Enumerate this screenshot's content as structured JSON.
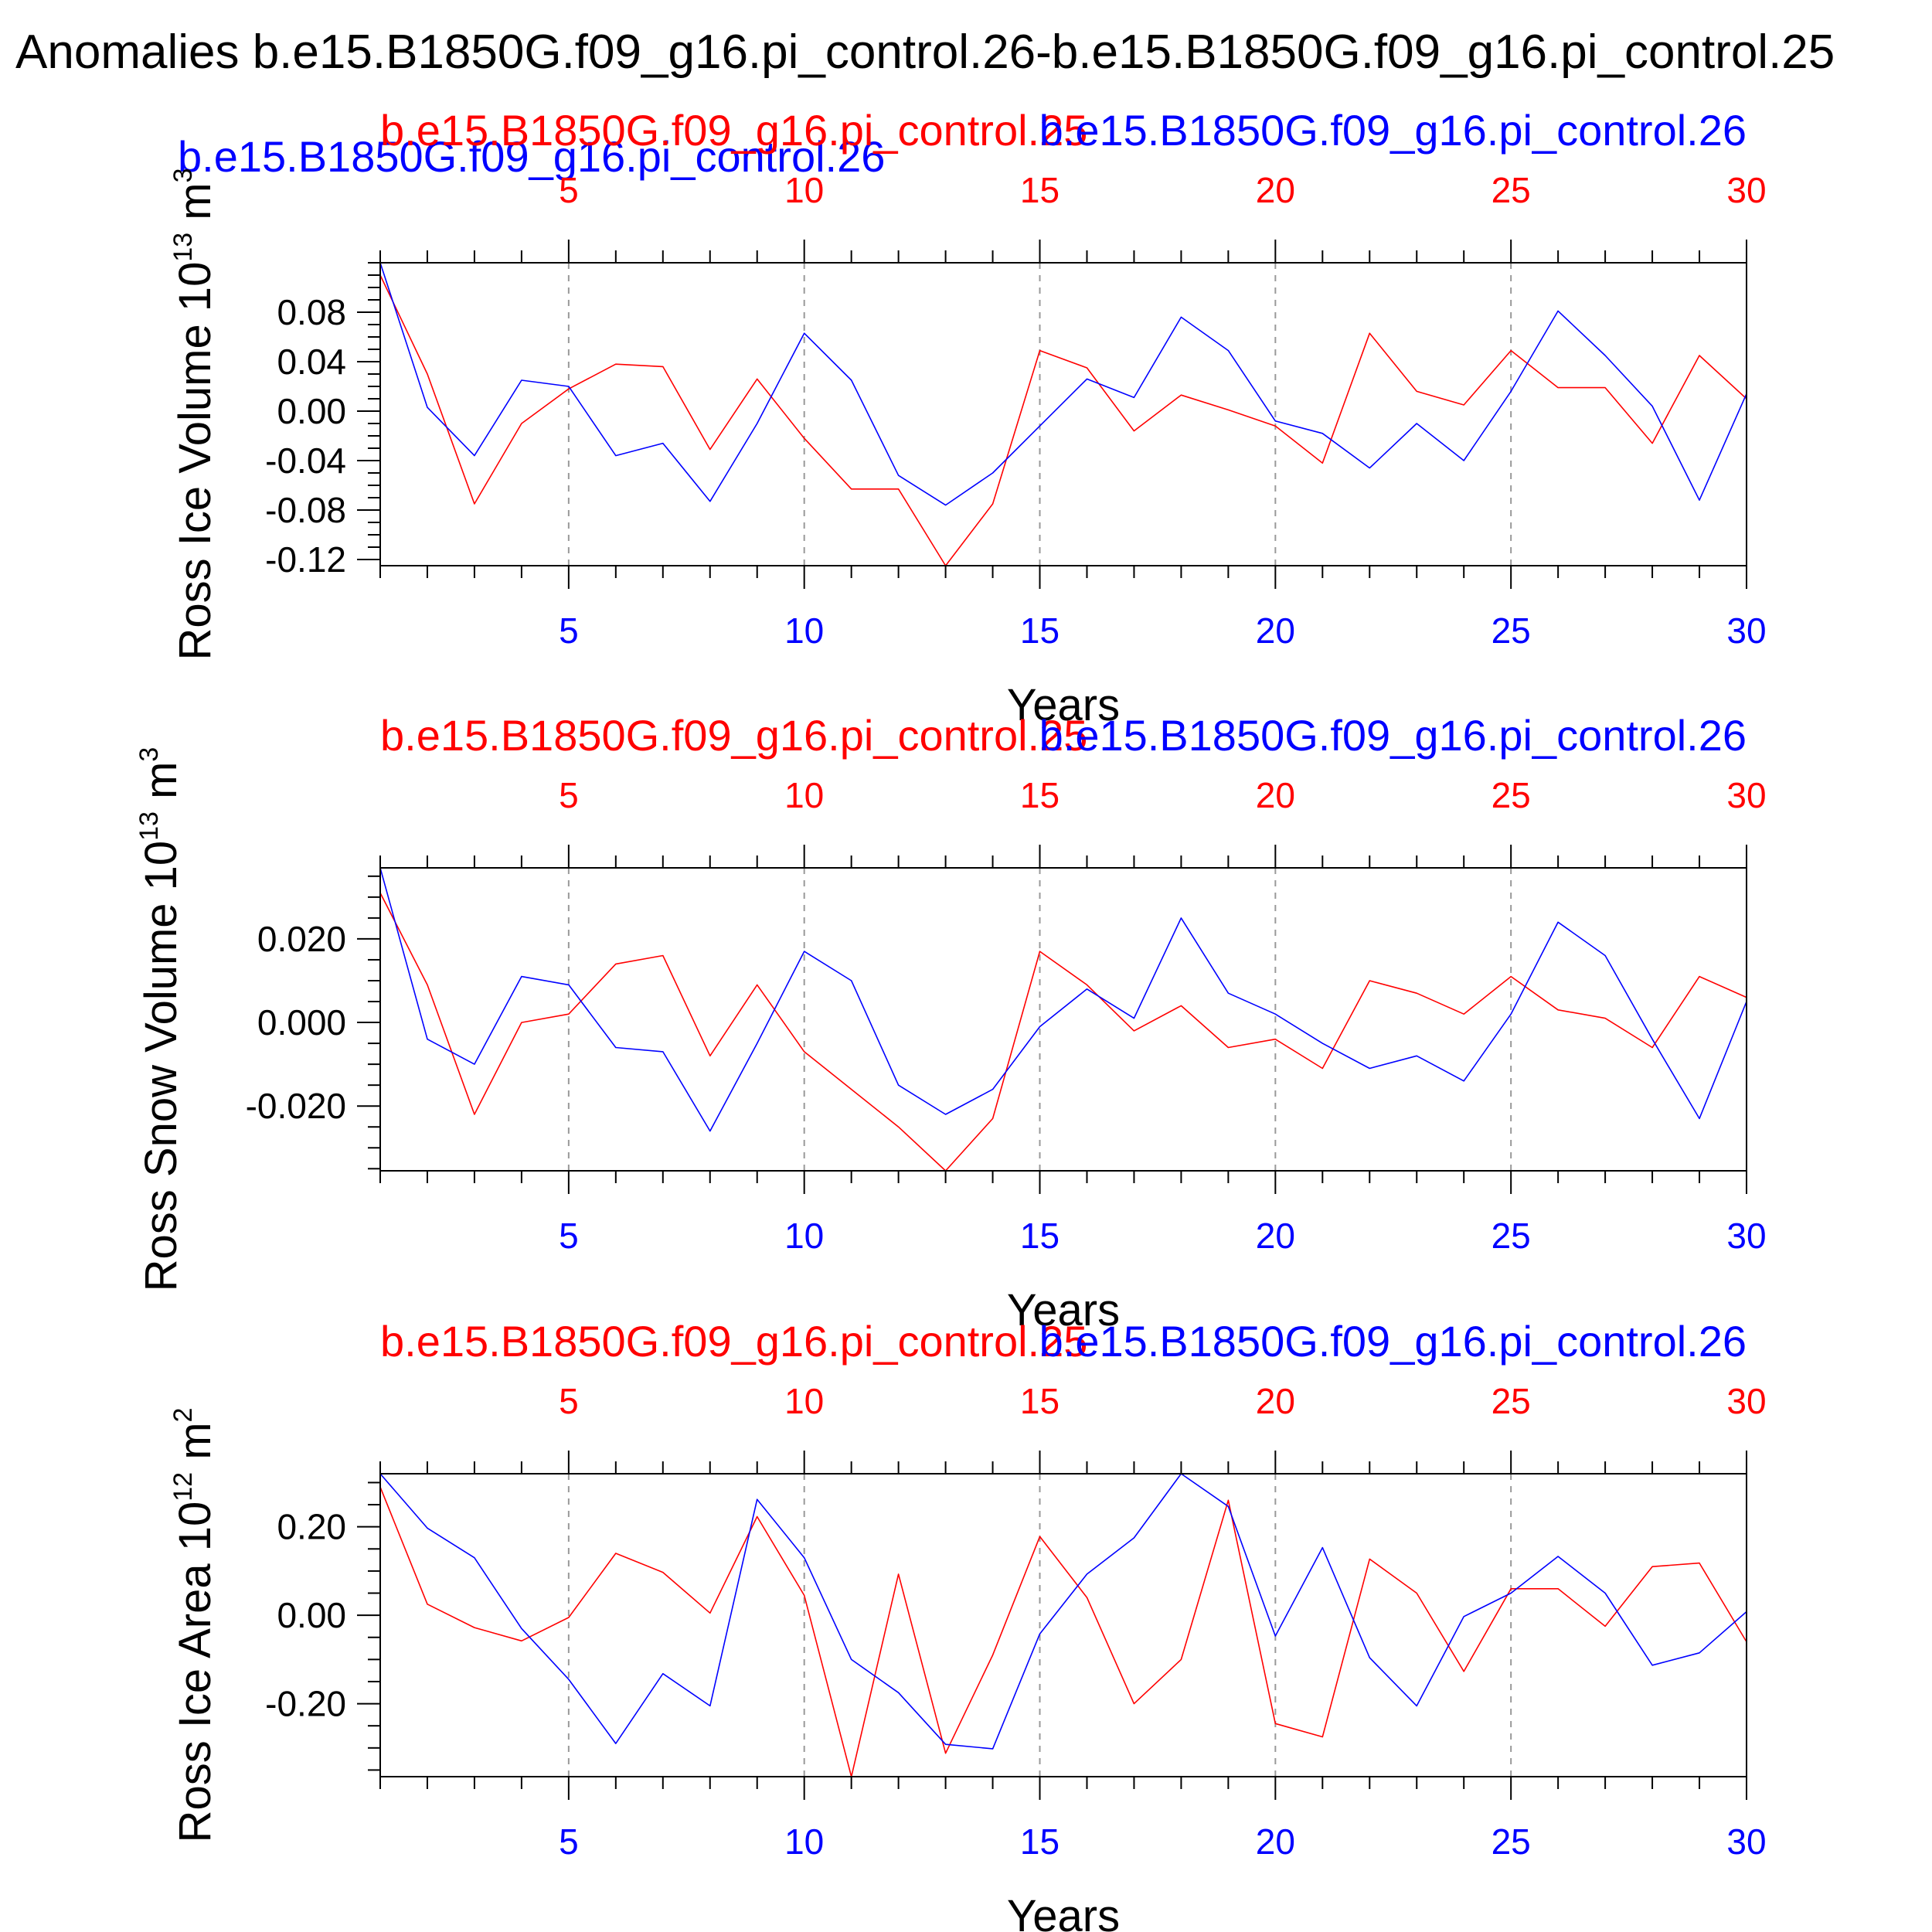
{
  "figure": {
    "title": "Anomalies b.e15.B1850G.f09_g16.pi_control.26-b.e15.B1850G.f09_g16.pi_control.25",
    "stray_label": "b.e15.B1850G.f09_g16.pi_control.26"
  },
  "colors": {
    "series_a": "#ff0000",
    "series_b": "#0000ff",
    "axis": "#000000",
    "grid": "#999999"
  },
  "chart_data": [
    {
      "type": "line",
      "ylabel": "Ross Ice Volume 10",
      "ylabel_exp": "13",
      "ylabel_unit": " m",
      "ylabel_unit_exp": "3",
      "xlabel": "Years",
      "xlim": [
        1,
        30
      ],
      "ylim": [
        -0.125,
        0.12
      ],
      "yticks": [
        -0.12,
        -0.08,
        -0.04,
        0.0,
        0.04,
        0.08
      ],
      "yticks_labels": [
        "-0.12",
        "-0.08",
        "-0.04",
        "0.00",
        "0.04",
        "0.08"
      ],
      "ytick_minor": 0.01,
      "xticks": [
        5,
        10,
        15,
        20,
        25,
        30
      ],
      "xticks_labels": [
        "5",
        "10",
        "15",
        "20",
        "25",
        "30"
      ],
      "grid_x": true,
      "series": [
        {
          "name": "b.e15.B1850G.f09_g16.pi_control.25",
          "color": "#ff0000",
          "x": [
            1,
            2,
            3,
            4,
            5,
            6,
            7,
            8,
            9,
            10,
            11,
            12,
            13,
            14,
            15,
            16,
            17,
            18,
            19,
            20,
            21,
            22,
            23,
            24,
            25,
            26,
            27,
            28,
            29,
            30
          ],
          "values": [
            0.11,
            0.03,
            -0.075,
            -0.01,
            0.018,
            0.038,
            0.036,
            -0.031,
            0.026,
            -0.022,
            -0.063,
            -0.063,
            -0.125,
            -0.075,
            0.049,
            0.035,
            -0.016,
            0.013,
            0.001,
            -0.012,
            -0.042,
            0.063,
            0.016,
            0.005,
            0.049,
            0.019,
            0.019,
            -0.026,
            0.045,
            0.01
          ]
        },
        {
          "name": "b.e15.B1850G.f09_g16.pi_control.26",
          "color": "#0000ff",
          "x": [
            1,
            2,
            3,
            4,
            5,
            6,
            7,
            8,
            9,
            10,
            11,
            12,
            13,
            14,
            15,
            16,
            17,
            18,
            19,
            20,
            21,
            22,
            23,
            24,
            25,
            26,
            27,
            28,
            29,
            30
          ],
          "values": [
            0.12,
            0.003,
            -0.036,
            0.025,
            0.02,
            -0.036,
            -0.026,
            -0.073,
            -0.01,
            0.063,
            0.025,
            -0.052,
            -0.076,
            -0.05,
            -0.012,
            0.026,
            0.011,
            0.076,
            0.049,
            -0.008,
            -0.018,
            -0.046,
            -0.01,
            -0.04,
            0.016,
            0.081,
            0.045,
            0.004,
            -0.072,
            0.014
          ]
        }
      ]
    },
    {
      "type": "line",
      "ylabel": "Ross Snow Volume 10",
      "ylabel_exp": "13",
      "ylabel_unit": " m",
      "ylabel_unit_exp": "3",
      "xlabel": "Years",
      "xlim": [
        1,
        30
      ],
      "ylim": [
        -0.0355,
        0.037
      ],
      "yticks": [
        -0.02,
        0.0,
        0.02
      ],
      "yticks_labels": [
        "-0.020",
        "0.000",
        "0.020"
      ],
      "ytick_minor": 0.005,
      "xticks": [
        5,
        10,
        15,
        20,
        25,
        30
      ],
      "xticks_labels": [
        "5",
        "10",
        "15",
        "20",
        "25",
        "30"
      ],
      "grid_x": true,
      "series": [
        {
          "name": "b.e15.B1850G.f09_g16.pi_control.25",
          "color": "#ff0000",
          "x": [
            1,
            2,
            3,
            4,
            5,
            6,
            7,
            8,
            9,
            10,
            11,
            12,
            13,
            14,
            15,
            16,
            17,
            18,
            19,
            20,
            21,
            22,
            23,
            24,
            25,
            26,
            27,
            28,
            29,
            30
          ],
          "values": [
            0.031,
            0.009,
            -0.022,
            0.0,
            0.002,
            0.014,
            0.016,
            -0.008,
            0.009,
            -0.007,
            -0.016,
            -0.025,
            -0.0355,
            -0.023,
            0.017,
            0.009,
            -0.002,
            0.004,
            -0.006,
            -0.004,
            -0.011,
            0.01,
            0.007,
            0.002,
            0.011,
            0.003,
            0.001,
            -0.006,
            0.011,
            0.006
          ]
        },
        {
          "name": "b.e15.B1850G.f09_g16.pi_control.26",
          "color": "#0000ff",
          "x": [
            1,
            2,
            3,
            4,
            5,
            6,
            7,
            8,
            9,
            10,
            11,
            12,
            13,
            14,
            15,
            16,
            17,
            18,
            19,
            20,
            21,
            22,
            23,
            24,
            25,
            26,
            27,
            28,
            29,
            30
          ],
          "values": [
            0.037,
            -0.004,
            -0.01,
            0.011,
            0.009,
            -0.006,
            -0.007,
            -0.026,
            -0.005,
            0.017,
            0.01,
            -0.015,
            -0.022,
            -0.016,
            -0.001,
            0.008,
            0.001,
            0.025,
            0.007,
            0.002,
            -0.005,
            -0.011,
            -0.008,
            -0.014,
            0.002,
            0.024,
            0.016,
            -0.004,
            -0.023,
            0.005
          ]
        }
      ]
    },
    {
      "type": "line",
      "ylabel": "Ross Ice Area 10",
      "ylabel_exp": "12",
      "ylabel_unit": " m",
      "ylabel_unit_exp": "2",
      "xlabel": "Years",
      "xlim": [
        1,
        30
      ],
      "ylim": [
        -0.365,
        0.32
      ],
      "yticks": [
        -0.2,
        0.0,
        0.2
      ],
      "yticks_labels": [
        "-0.20",
        "0.00",
        "0.20"
      ],
      "ytick_minor": 0.05,
      "xticks": [
        5,
        10,
        15,
        20,
        25,
        30
      ],
      "xticks_labels": [
        "5",
        "10",
        "15",
        "20",
        "25",
        "30"
      ],
      "grid_x": true,
      "series": [
        {
          "name": "b.e15.B1850G.f09_g16.pi_control.25",
          "color": "#ff0000",
          "x": [
            1,
            2,
            3,
            4,
            5,
            6,
            7,
            8,
            9,
            10,
            11,
            12,
            13,
            14,
            15,
            16,
            17,
            18,
            19,
            20,
            21,
            22,
            23,
            24,
            25,
            26,
            27,
            28,
            29,
            30
          ],
          "values": [
            0.29,
            0.025,
            -0.028,
            -0.058,
            -0.005,
            0.14,
            0.097,
            0.005,
            0.223,
            0.045,
            -0.365,
            0.093,
            -0.312,
            -0.09,
            0.178,
            0.04,
            -0.2,
            -0.1,
            0.26,
            -0.245,
            -0.275,
            0.127,
            0.05,
            -0.127,
            0.06,
            0.06,
            -0.025,
            0.11,
            0.118,
            -0.06
          ]
        },
        {
          "name": "b.e15.B1850G.f09_g16.pi_control.26",
          "color": "#0000ff",
          "x": [
            1,
            2,
            3,
            4,
            5,
            6,
            7,
            8,
            9,
            10,
            11,
            12,
            13,
            14,
            15,
            16,
            17,
            18,
            19,
            20,
            21,
            22,
            23,
            24,
            25,
            26,
            27,
            28,
            29,
            30
          ],
          "values": [
            0.32,
            0.197,
            0.13,
            -0.03,
            -0.145,
            -0.29,
            -0.132,
            -0.205,
            0.262,
            0.13,
            -0.1,
            -0.175,
            -0.292,
            -0.302,
            -0.042,
            0.093,
            0.175,
            0.32,
            0.246,
            -0.047,
            0.153,
            -0.096,
            -0.205,
            -0.003,
            0.05,
            0.133,
            0.05,
            -0.113,
            -0.085,
            0.008
          ]
        }
      ]
    }
  ]
}
